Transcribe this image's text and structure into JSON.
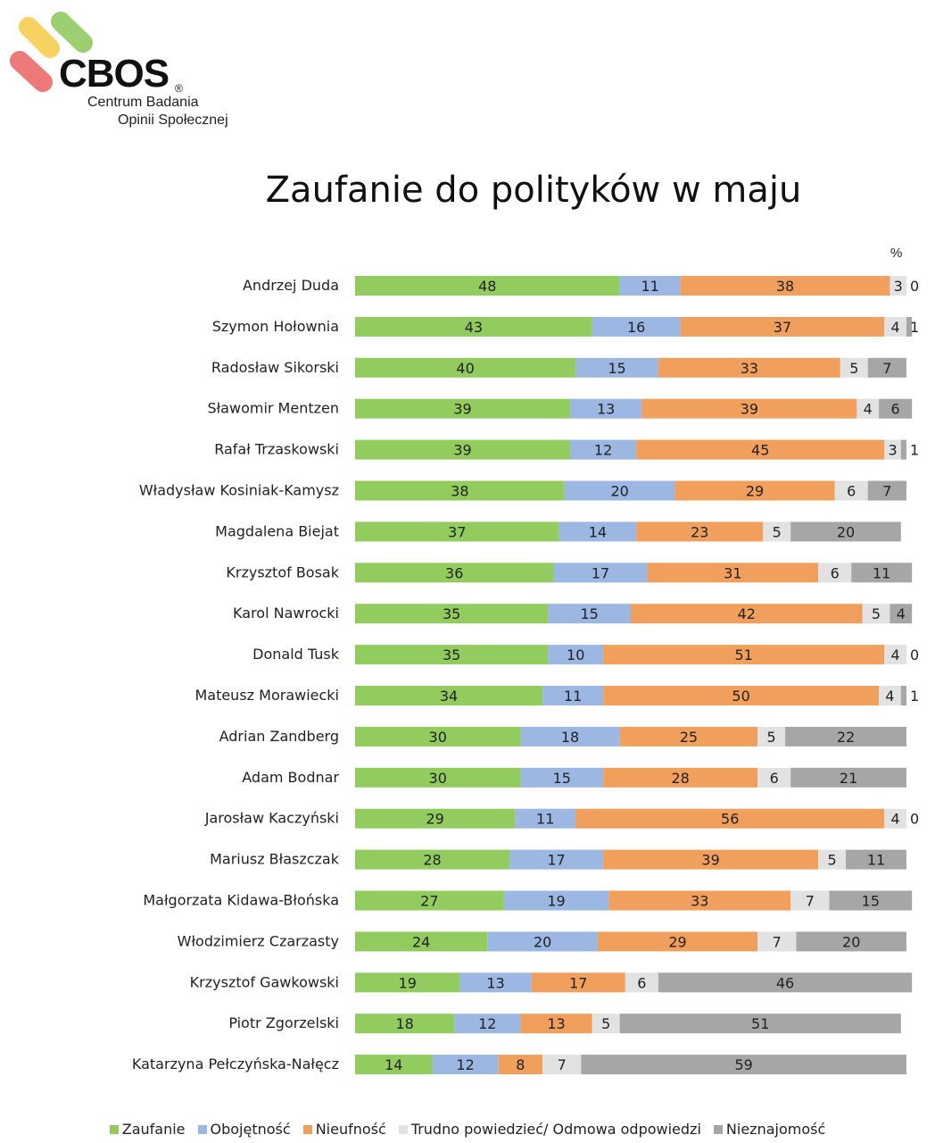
{
  "logo": {
    "name": "CBOS",
    "reg_mark": "®",
    "subtitle_line1": "Centrum Badania",
    "subtitle_line2": "Opinii Społecznej"
  },
  "colors": {
    "zaufanie": "#92cc5e",
    "obojetnosc": "#9bb7e2",
    "nieufnosc": "#f0a05c",
    "trudno": "#e2e2e2",
    "nieznajomosc": "#a6a6a6"
  },
  "chart_data": {
    "type": "bar",
    "orientation": "horizontal",
    "stacked": true,
    "title": "Zaufanie do polityków w maju",
    "unit_label": "%",
    "xlim": [
      0,
      100
    ],
    "categories": [
      "Andrzej Duda",
      "Szymon Hołownia",
      "Radosław Sikorski",
      "Sławomir Mentzen",
      "Rafał Trzaskowski",
      "Władysław Kosiniak-Kamysz",
      "Magdalena Biejat",
      "Krzysztof Bosak",
      "Karol Nawrocki",
      "Donald Tusk",
      "Mateusz Morawiecki",
      "Adrian Zandberg",
      "Adam Bodnar",
      "Jarosław Kaczyński",
      "Mariusz Błaszczak",
      "Małgorzata Kidawa-Błońska",
      "Włodzimierz Czarzasty",
      "Krzysztof Gawkowski",
      "Piotr Zgorzelski",
      "Katarzyna Pełczyńska-Nałęcz"
    ],
    "series": [
      {
        "name": "Zaufanie",
        "color_key": "zaufanie",
        "values": [
          48,
          43,
          40,
          39,
          39,
          38,
          37,
          36,
          35,
          35,
          34,
          30,
          30,
          29,
          28,
          27,
          24,
          19,
          18,
          14
        ]
      },
      {
        "name": "Obojętność",
        "color_key": "obojetnosc",
        "values": [
          11,
          16,
          15,
          13,
          12,
          20,
          14,
          17,
          15,
          10,
          11,
          18,
          15,
          11,
          17,
          19,
          20,
          13,
          12,
          12
        ]
      },
      {
        "name": "Nieufność",
        "color_key": "nieufnosc",
        "values": [
          38,
          37,
          33,
          39,
          45,
          29,
          23,
          31,
          42,
          51,
          50,
          25,
          28,
          56,
          39,
          33,
          29,
          17,
          13,
          8
        ]
      },
      {
        "name": "Trudno powiedzieć/ Odmowa odpowiedzi",
        "color_key": "trudno",
        "values": [
          3,
          4,
          5,
          4,
          3,
          6,
          5,
          6,
          5,
          4,
          4,
          5,
          6,
          4,
          5,
          7,
          7,
          6,
          5,
          7
        ]
      },
      {
        "name": "Nieznajomość",
        "color_key": "nieznajomosc",
        "values": [
          0,
          1,
          7,
          6,
          1,
          7,
          20,
          11,
          4,
          0,
          1,
          22,
          21,
          0,
          11,
          15,
          20,
          46,
          51,
          59
        ]
      }
    ],
    "legend": [
      {
        "label": "Zaufanie",
        "color_key": "zaufanie"
      },
      {
        "label": "Obojętność",
        "color_key": "obojetnosc"
      },
      {
        "label": "Nieufność",
        "color_key": "nieufnosc"
      },
      {
        "label": "Trudno powiedzieć/ Odmowa odpowiedzi",
        "color_key": "trudno"
      },
      {
        "label": "Nieznajomość",
        "color_key": "nieznajomosc"
      }
    ],
    "legend_position": "bottom"
  }
}
